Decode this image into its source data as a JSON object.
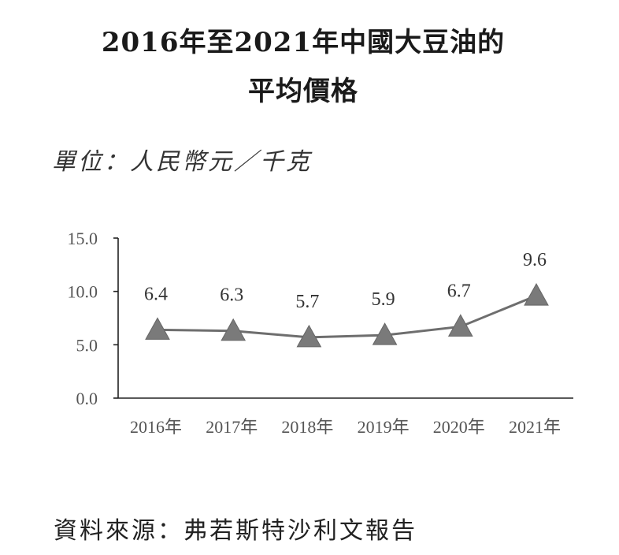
{
  "title_line1": "2016年至2021年中國大豆油的",
  "title_line2": "平均價格",
  "unit_label": "單位：人民幣元／千克",
  "source_label": "資料來源：弗若斯特沙利文報告",
  "colors": {
    "marker": "#7a7a7a",
    "line": "#6e6e6e",
    "axis": "#222222"
  },
  "chart_data": {
    "type": "line",
    "categories": [
      "2016年",
      "2017年",
      "2018年",
      "2019年",
      "2020年",
      "2021年"
    ],
    "series": [
      {
        "values": [
          6.4,
          6.3,
          5.7,
          5.9,
          6.7,
          9.6
        ]
      }
    ],
    "data_labels": [
      "6.4",
      "6.3",
      "5.7",
      "5.9",
      "6.7",
      "9.6"
    ],
    "y_ticks": [
      "0.0",
      "5.0",
      "10.0",
      "15.0"
    ],
    "ylim": [
      0,
      15
    ],
    "marker": "triangle",
    "grid": false,
    "legend": false
  }
}
